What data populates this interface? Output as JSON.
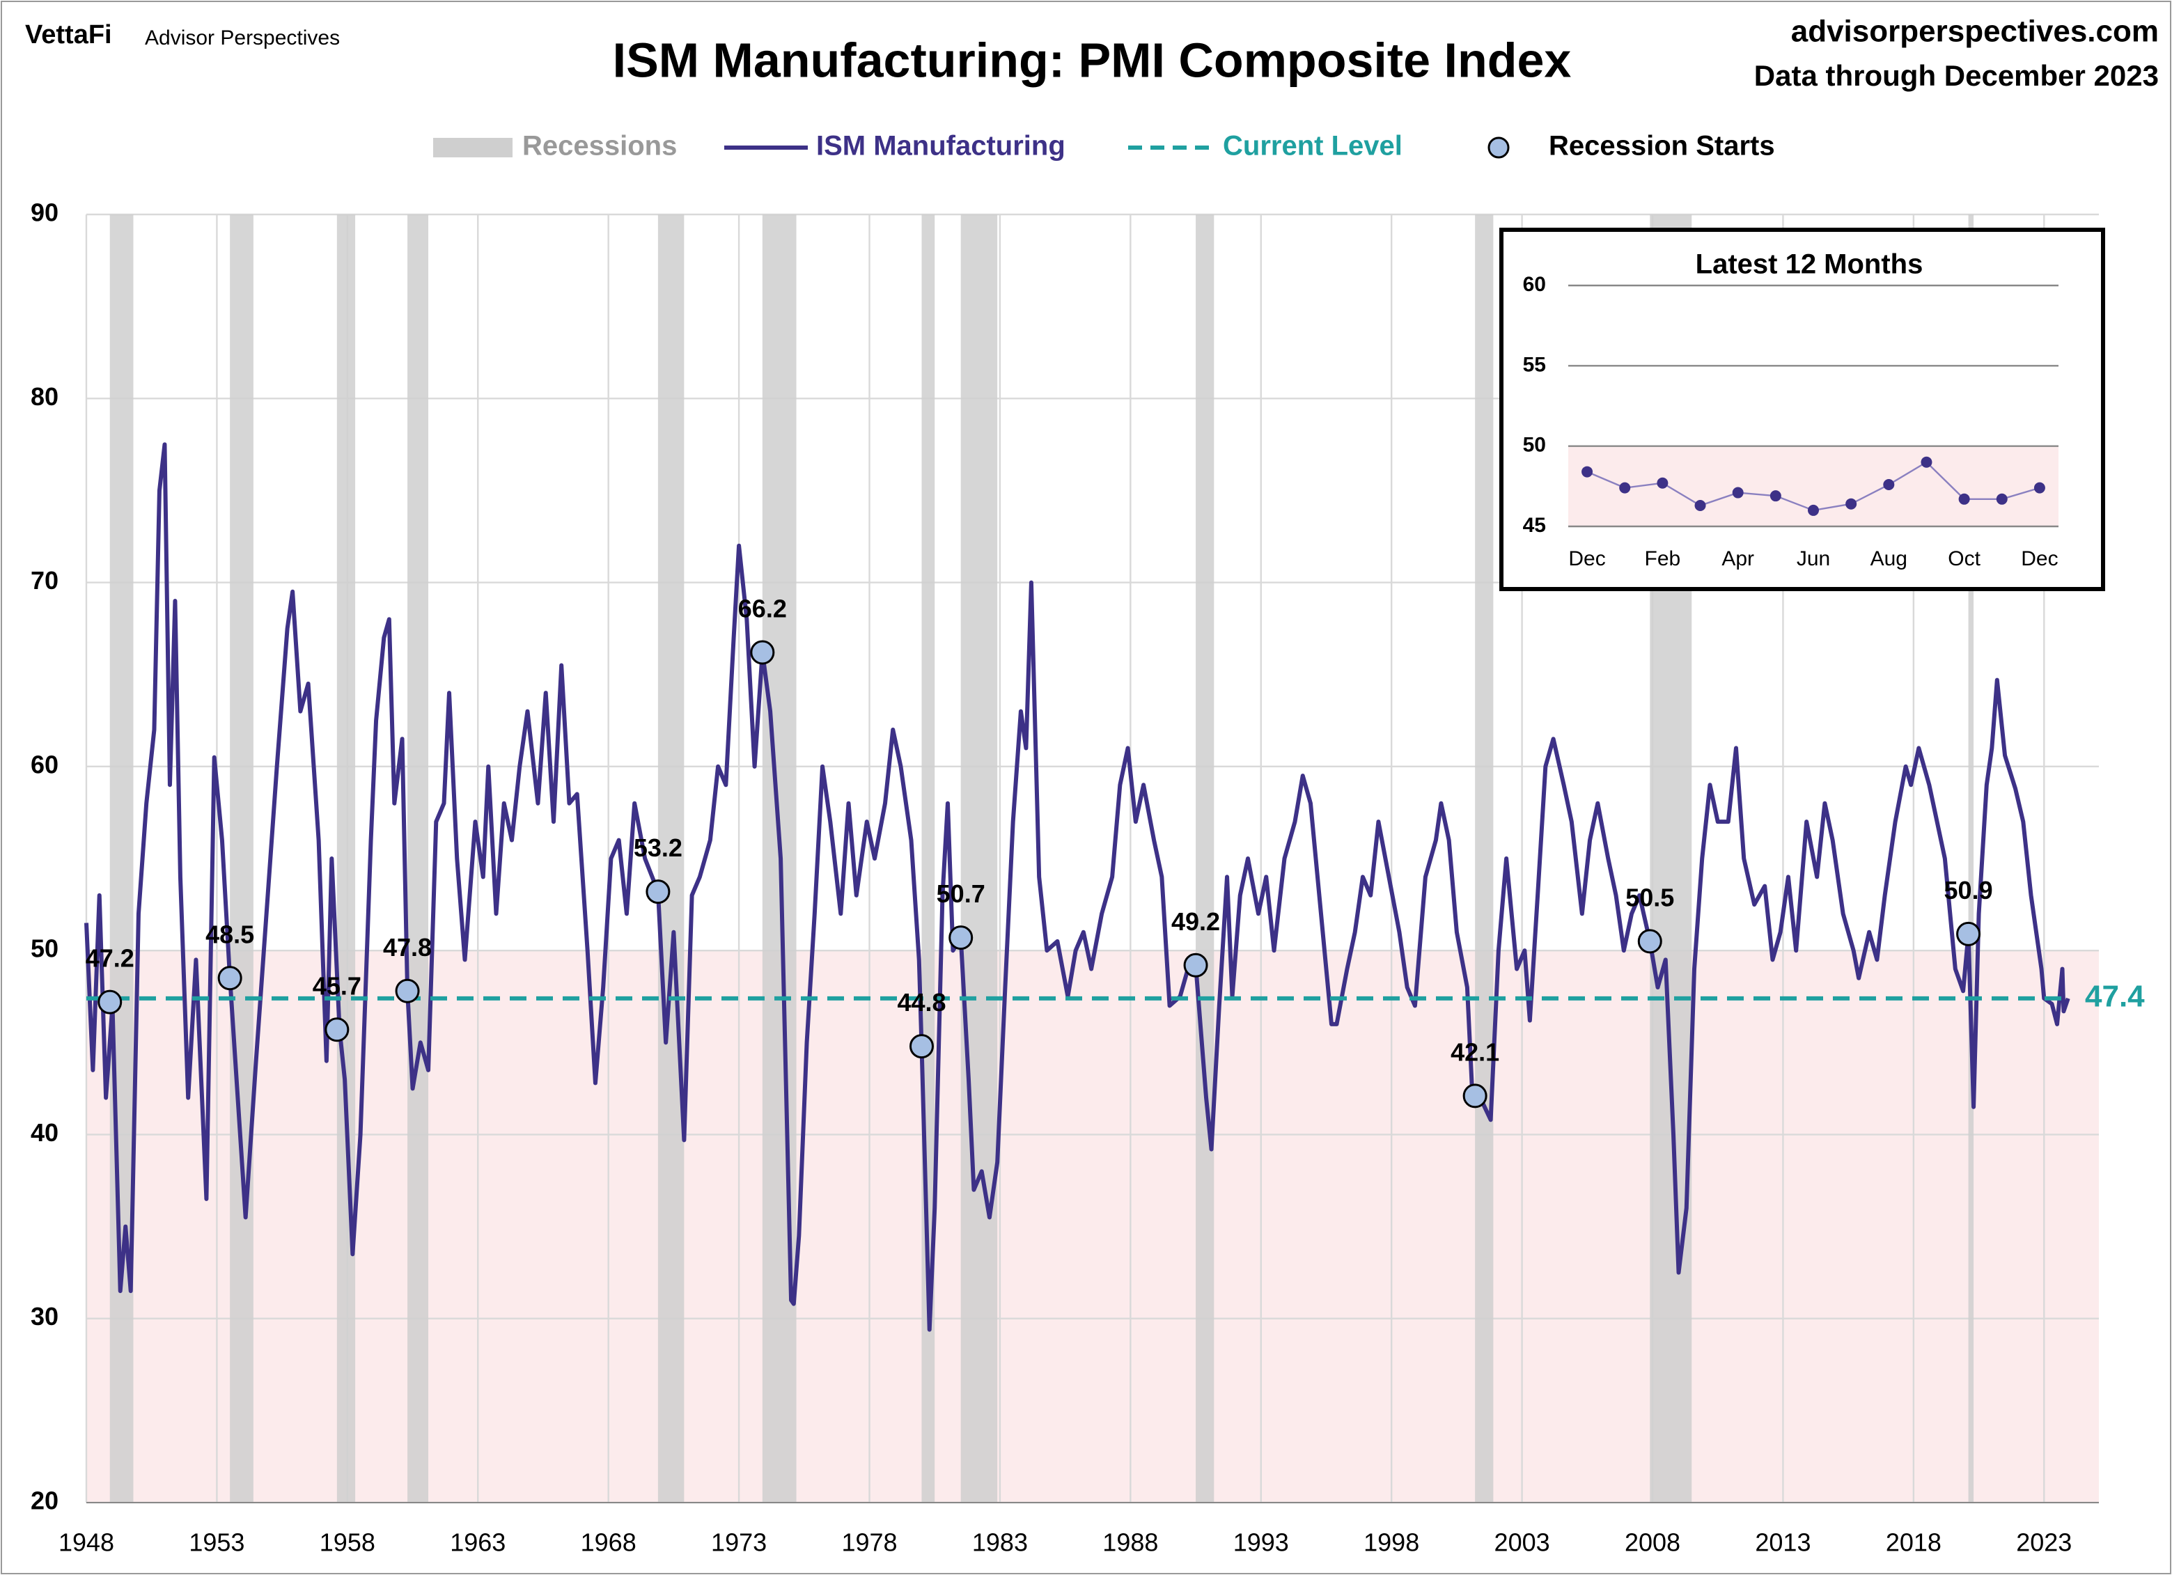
{
  "chart_data": [
    {
      "type": "line",
      "brand": "VettaFi",
      "brand_sub": "Advisor Perspectives",
      "title": "ISM Manufacturing: PMI Composite Index",
      "source": "advisorperspectives.com",
      "subtitle": "Data through December 2023",
      "xlim": [
        1948,
        2025.1
      ],
      "xticks": [
        1948,
        1953,
        1958,
        1963,
        1968,
        1973,
        1978,
        1983,
        1988,
        1993,
        1998,
        2003,
        2008,
        2013,
        2018,
        2023
      ],
      "ylim": [
        20,
        90
      ],
      "yticks": [
        20,
        30,
        40,
        50,
        60,
        70,
        80,
        90
      ],
      "grid": true,
      "shade_below": 50,
      "shade_color": "#fcebec",
      "recessions": {
        "name": "Recessions",
        "color": "#cfcfcf",
        "spans": [
          [
            1948.9,
            1949.8
          ],
          [
            1953.5,
            1954.4
          ],
          [
            1957.6,
            1958.3
          ],
          [
            1960.3,
            1961.1
          ],
          [
            1969.9,
            1970.9
          ],
          [
            1973.9,
            1975.2
          ],
          [
            1980.0,
            1980.5
          ],
          [
            1981.5,
            1982.9
          ],
          [
            1990.5,
            1991.2
          ],
          [
            2001.2,
            2001.9
          ],
          [
            2007.9,
            2009.5
          ],
          [
            2020.1,
            2020.3
          ]
        ]
      },
      "series": [
        {
          "name": "ISM Manufacturing",
          "color": "#3d3187",
          "x": [
            1948.0,
            1948.25,
            1948.5,
            1948.75,
            1949.0,
            1949.3,
            1949.5,
            1949.7,
            1950.0,
            1950.3,
            1950.6,
            1950.8,
            1951.0,
            1951.2,
            1951.4,
            1951.6,
            1951.9,
            1952.2,
            1952.6,
            1952.9,
            1953.2,
            1953.5,
            1953.8,
            1954.1,
            1954.5,
            1954.9,
            1955.3,
            1955.7,
            1955.9,
            1956.2,
            1956.5,
            1956.9,
            1957.2,
            1957.4,
            1957.7,
            1957.9,
            1958.2,
            1958.5,
            1958.9,
            1959.1,
            1959.4,
            1959.6,
            1959.8,
            1960.1,
            1960.3,
            1960.5,
            1960.8,
            1961.1,
            1961.4,
            1961.7,
            1961.9,
            1962.2,
            1962.5,
            1962.9,
            1963.2,
            1963.4,
            1963.7,
            1964.0,
            1964.3,
            1964.6,
            1964.9,
            1965.3,
            1965.6,
            1965.9,
            1966.2,
            1966.5,
            1966.8,
            1967.2,
            1967.5,
            1967.8,
            1968.1,
            1968.4,
            1968.7,
            1969.0,
            1969.4,
            1969.9,
            1970.2,
            1970.5,
            1970.9,
            1971.2,
            1971.5,
            1971.9,
            1972.2,
            1972.5,
            1972.8,
            1973.0,
            1973.3,
            1973.6,
            1973.9,
            1974.2,
            1974.6,
            1975.0,
            1975.1,
            1975.3,
            1975.6,
            1975.9,
            1976.2,
            1976.5,
            1976.9,
            1977.2,
            1977.5,
            1977.9,
            1978.2,
            1978.6,
            1978.9,
            1979.2,
            1979.6,
            1979.9,
            1980.0,
            1980.3,
            1980.5,
            1980.8,
            1981.0,
            1981.2,
            1981.5,
            1981.8,
            1982.0,
            1982.3,
            1982.6,
            1982.9,
            1983.2,
            1983.5,
            1983.8,
            1984.0,
            1984.2,
            1984.5,
            1984.8,
            1985.2,
            1985.6,
            1985.9,
            1986.2,
            1986.5,
            1986.9,
            1987.3,
            1987.6,
            1987.9,
            1988.2,
            1988.5,
            1988.9,
            1989.2,
            1989.5,
            1989.9,
            1990.2,
            1990.5,
            1990.9,
            1991.1,
            1991.4,
            1991.7,
            1991.9,
            1992.2,
            1992.5,
            1992.9,
            1993.2,
            1993.5,
            1993.9,
            1994.3,
            1994.6,
            1994.9,
            1995.3,
            1995.7,
            1995.9,
            1996.3,
            1996.6,
            1996.9,
            1997.2,
            1997.5,
            1997.9,
            1998.3,
            1998.6,
            1998.9,
            1999.3,
            1999.7,
            1999.9,
            2000.2,
            2000.5,
            2000.9,
            2001.1,
            2001.4,
            2001.8,
            2002.1,
            2002.4,
            2002.8,
            2003.1,
            2003.3,
            2003.6,
            2003.9,
            2004.2,
            2004.6,
            2004.9,
            2005.3,
            2005.6,
            2005.9,
            2006.3,
            2006.6,
            2006.9,
            2007.2,
            2007.5,
            2007.9,
            2008.2,
            2008.5,
            2008.8,
            2009.0,
            2009.3,
            2009.6,
            2009.9,
            2010.2,
            2010.5,
            2010.9,
            2011.2,
            2011.5,
            2011.9,
            2012.3,
            2012.6,
            2012.9,
            2013.2,
            2013.5,
            2013.9,
            2014.3,
            2014.6,
            2014.9,
            2015.3,
            2015.7,
            2015.9,
            2016.3,
            2016.6,
            2016.9,
            2017.3,
            2017.7,
            2017.9,
            2018.2,
            2018.6,
            2018.9,
            2019.2,
            2019.6,
            2019.9,
            2020.1,
            2020.3,
            2020.5,
            2020.8,
            2021.0,
            2021.2,
            2021.5,
            2021.9,
            2022.2,
            2022.5,
            2022.9,
            2023.0,
            2023.3,
            2023.5,
            2023.7,
            2023.75,
            2023.92
          ],
          "values": [
            51.5,
            43.5,
            53,
            42,
            47,
            31.5,
            35,
            31.5,
            52,
            58,
            62,
            75,
            77.5,
            59,
            69,
            54,
            42,
            49.5,
            36.5,
            60.5,
            56,
            48.5,
            42,
            35.5,
            44,
            52,
            60,
            67.5,
            69.5,
            63,
            64.5,
            56,
            44,
            55,
            45.7,
            43,
            33.5,
            40,
            56,
            62.5,
            67,
            68,
            58,
            61.5,
            47.8,
            42.5,
            45,
            43.5,
            57,
            58,
            64,
            55,
            49.5,
            57,
            54,
            60,
            52,
            58,
            56,
            60,
            63,
            58,
            64,
            57,
            65.5,
            58,
            58.5,
            50,
            42.8,
            48,
            55,
            56,
            52,
            58,
            55,
            53.2,
            45,
            51,
            39.7,
            53,
            54,
            56,
            60,
            59,
            67,
            72,
            68,
            60,
            66.2,
            63,
            55,
            31,
            30.8,
            34.5,
            45,
            52,
            60,
            57,
            52,
            58,
            53,
            57,
            55,
            58,
            62,
            60,
            56,
            49.5,
            44.8,
            29.4,
            36,
            53,
            58,
            50,
            50.7,
            43,
            37,
            38,
            35.5,
            38.5,
            48,
            57,
            63,
            61,
            70,
            54,
            50,
            50.5,
            47.5,
            50,
            51,
            49,
            52,
            54,
            59,
            61,
            57,
            59,
            56,
            54,
            47,
            47.5,
            49,
            49.2,
            42,
            39.2,
            47,
            54,
            47.5,
            53,
            55,
            52,
            54,
            50,
            55,
            57,
            59.5,
            58,
            52,
            46,
            46,
            49,
            51,
            54,
            53,
            57,
            54,
            51,
            48,
            47,
            54,
            56,
            58,
            56,
            51,
            48,
            42.1,
            42,
            40.8,
            50,
            55,
            49,
            50,
            46.2,
            53,
            60,
            61.5,
            59,
            57,
            52,
            56,
            58,
            55,
            53,
            50,
            52,
            53,
            50.5,
            48,
            49.5,
            40,
            32.5,
            36,
            49,
            55,
            59,
            57,
            57,
            61,
            55,
            52.5,
            53.5,
            49.5,
            51,
            54,
            50,
            57,
            54,
            58,
            56,
            52,
            50,
            48.5,
            51,
            49.5,
            53,
            57,
            60,
            59,
            61,
            59,
            57,
            55,
            49,
            47.8,
            50.9,
            41.5,
            52,
            59,
            61,
            64.7,
            60.6,
            58.8,
            57,
            53,
            49,
            47.4,
            47.1,
            46,
            49,
            46.7,
            47.4
          ]
        }
      ],
      "current_level": {
        "name": "Current Level",
        "color": "#1fa0a0",
        "value": 47.4
      },
      "recession_starts": {
        "name": "Recession Starts",
        "color": "#a6bfe3",
        "x": [
          1948.9,
          1953.5,
          1957.6,
          1960.3,
          1969.9,
          1973.9,
          1980.0,
          1981.5,
          1990.5,
          2001.2,
          2007.9,
          2020.1
        ],
        "values": [
          47.2,
          48.5,
          45.7,
          47.8,
          53.2,
          66.2,
          44.8,
          50.7,
          49.2,
          42.1,
          50.5,
          50.9
        ]
      }
    },
    {
      "type": "line",
      "title": "Latest 12 Months",
      "categories": [
        "Dec",
        null,
        "Feb",
        null,
        "Apr",
        null,
        "Jun",
        null,
        "Aug",
        null,
        "Oct",
        null,
        "Dec"
      ],
      "values": [
        48.4,
        47.4,
        47.7,
        46.3,
        47.1,
        46.9,
        46.0,
        46.4,
        47.6,
        49.0,
        46.7,
        46.7,
        47.4
      ],
      "color": "#3d3187",
      "ylim": [
        45,
        60
      ],
      "yticks": [
        45,
        50,
        55,
        60
      ],
      "grid": true,
      "shade_below": 50,
      "shade_color": "#fcebec"
    }
  ]
}
